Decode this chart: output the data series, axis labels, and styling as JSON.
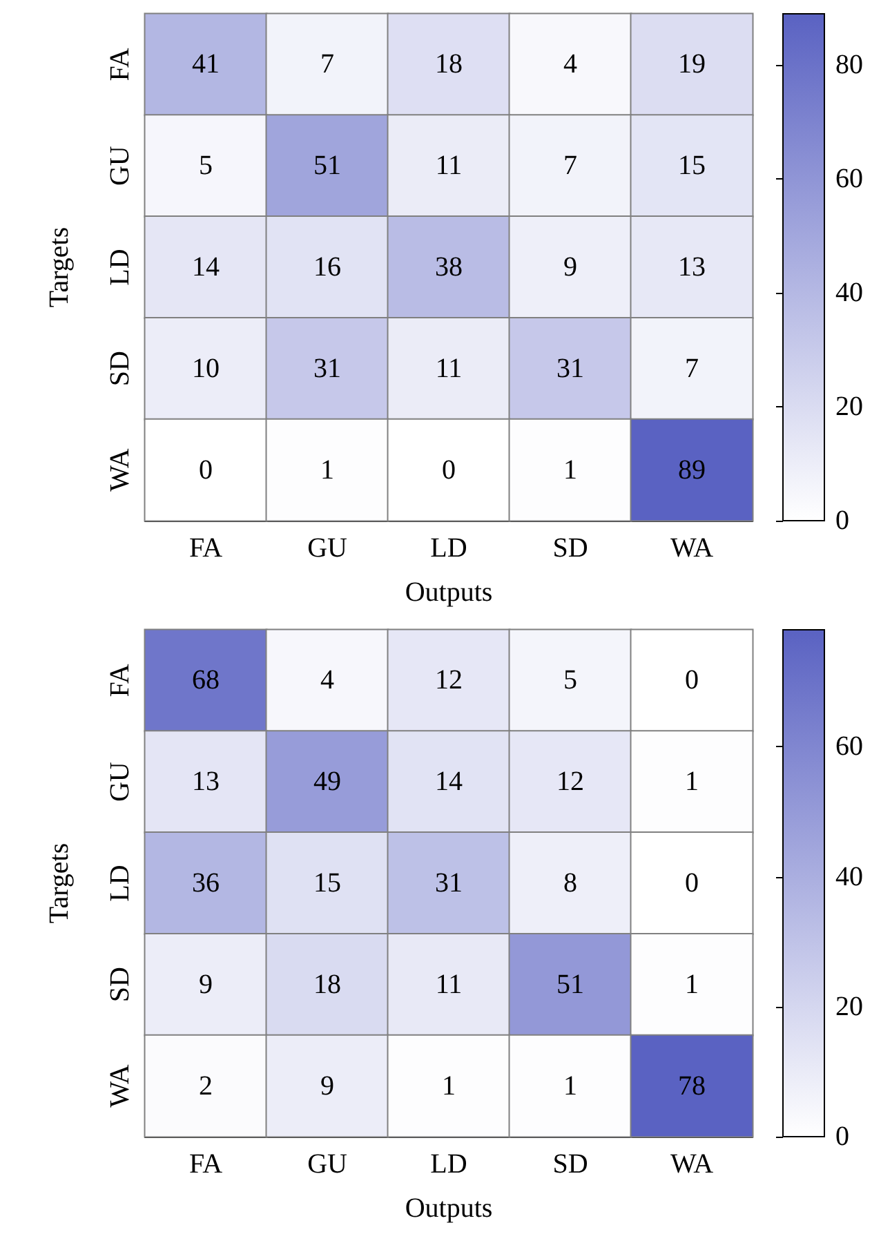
{
  "chart_data": [
    {
      "type": "heatmap",
      "xlabel": "Outputs",
      "ylabel": "Targets",
      "categories": [
        "FA",
        "GU",
        "LD",
        "SD",
        "WA"
      ],
      "y_categories": [
        "FA",
        "GU",
        "LD",
        "SD",
        "WA"
      ],
      "cells": [
        [
          41,
          7,
          18,
          4,
          19
        ],
        [
          5,
          51,
          11,
          7,
          15
        ],
        [
          14,
          16,
          38,
          9,
          13
        ],
        [
          10,
          31,
          11,
          31,
          7
        ],
        [
          0,
          1,
          0,
          1,
          89
        ]
      ],
      "color": "#5a62c2",
      "clim": [
        0,
        89
      ],
      "cticks": [
        0,
        20,
        40,
        60,
        80
      ],
      "data_labels": true
    },
    {
      "type": "heatmap",
      "xlabel": "Outputs",
      "ylabel": "Targets",
      "categories": [
        "FA",
        "GU",
        "LD",
        "SD",
        "WA"
      ],
      "y_categories": [
        "FA",
        "GU",
        "LD",
        "SD",
        "WA"
      ],
      "cells": [
        [
          68,
          4,
          12,
          5,
          0
        ],
        [
          13,
          49,
          14,
          12,
          1
        ],
        [
          36,
          15,
          31,
          8,
          0
        ],
        [
          9,
          18,
          11,
          51,
          1
        ],
        [
          2,
          9,
          1,
          1,
          78
        ]
      ],
      "color": "#5a62c2",
      "clim": [
        0,
        78
      ],
      "cticks": [
        0,
        20,
        40,
        60
      ],
      "data_labels": true
    }
  ]
}
